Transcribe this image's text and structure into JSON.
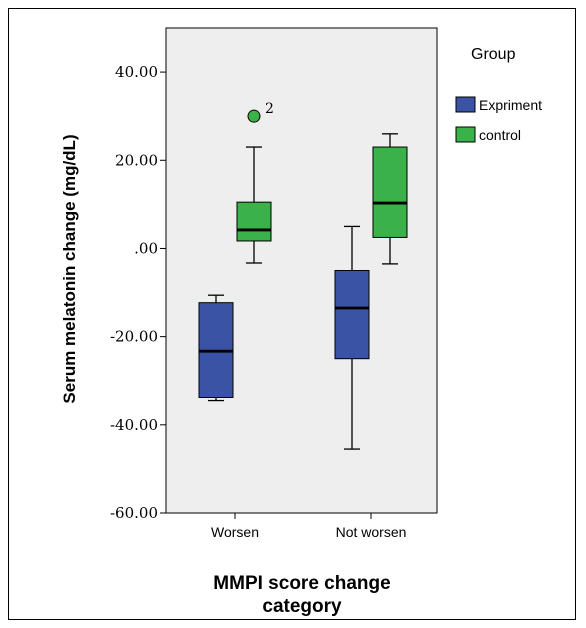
{
  "chart_data": {
    "type": "boxplot",
    "xlabel_lines": [
      "MMPI score change",
      "category"
    ],
    "ylabel": "Serum melatonin change (mg/dL)",
    "ylim": [
      -60,
      50
    ],
    "yticks": [
      {
        "value": 40,
        "label": "40.00"
      },
      {
        "value": 20,
        "label": "20.00"
      },
      {
        "value": 0,
        "label": ".00"
      },
      {
        "value": -20,
        "label": "-20.00"
      },
      {
        "value": -40,
        "label": "-40.00"
      },
      {
        "value": -60,
        "label": "-60.00"
      }
    ],
    "categories": [
      "Worsen",
      "Not worsen"
    ],
    "grid": false,
    "legend": {
      "title": "Group",
      "position": "right",
      "entries": [
        {
          "name": "Expriment",
          "color": "#3a53a5"
        },
        {
          "name": "control",
          "color": "#3bb14a"
        }
      ]
    },
    "series": [
      {
        "name": "Expriment",
        "color": "#3a53a5",
        "boxes": [
          {
            "category": "Worsen",
            "min": -34.5,
            "q1": -33.8,
            "median": -23.3,
            "q3": -12.3,
            "max": -10.6
          },
          {
            "category": "Not worsen",
            "min": -45.5,
            "q1": -25.0,
            "median": -13.5,
            "q3": -5.0,
            "max": 5.0
          }
        ]
      },
      {
        "name": "control",
        "color": "#3bb14a",
        "boxes": [
          {
            "category": "Worsen",
            "min": -3.3,
            "q1": 1.7,
            "median": 4.2,
            "q3": 10.5,
            "max": 23.0,
            "outliers": [
              {
                "value": 30.0,
                "label": "2"
              }
            ]
          },
          {
            "category": "Not worsen",
            "min": -3.5,
            "q1": 2.5,
            "median": 10.3,
            "q3": 23.0,
            "max": 26.0
          }
        ]
      }
    ]
  }
}
